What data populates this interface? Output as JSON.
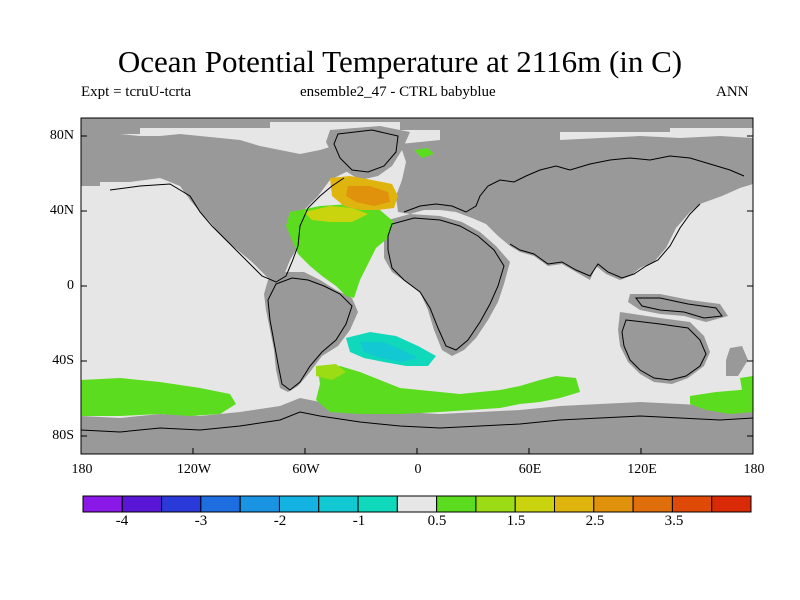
{
  "title": "Ocean Potential Temperature at 2116m (in C)",
  "subtitle_left": "Expt = tcruU-tcrta",
  "subtitle_center": "ensemble2_47 - CTRL babyblue",
  "subtitle_right": "ANN",
  "lat_labels": [
    "80N",
    "40N",
    "0",
    "40S",
    "80S"
  ],
  "lon_labels": [
    "180",
    "120W",
    "60W",
    "0",
    "60E",
    "120E",
    "180"
  ],
  "colorbar": {
    "colors": [
      "#8a18e6",
      "#5a16d6",
      "#2a3ad8",
      "#1f6ee0",
      "#1a94e2",
      "#14b2e0",
      "#12c8d2",
      "#10d8ba",
      "#e6e6e6",
      "#5cdc1e",
      "#9cdc14",
      "#cad40e",
      "#e0b40e",
      "#e0920c",
      "#e06e0a",
      "#e04a08",
      "#d82a06"
    ],
    "labels": [
      "-4",
      "-3",
      "-2",
      "-1",
      "0.5",
      "1.5",
      "2.5",
      "3.5"
    ]
  },
  "map_colors": {
    "land": "#999999",
    "ocean_neutral": "#e6e6e6",
    "green": "#5cdc1e",
    "light_green": "#9cdc14",
    "yellow": "#cad40e",
    "orange": "#e0b40e",
    "dark_orange": "#e0920c",
    "cyan": "#12c8d2",
    "teal": "#10d8ba"
  }
}
